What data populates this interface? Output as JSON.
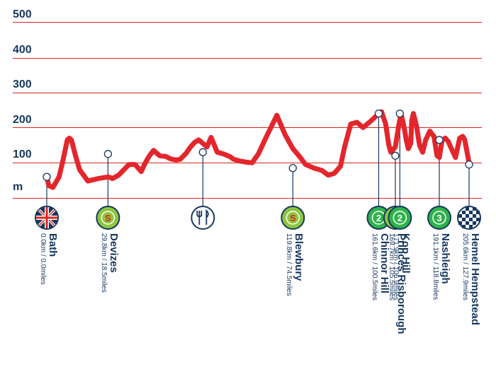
{
  "chart_data": {
    "type": "line",
    "ylabel": "m",
    "ylim": [
      0,
      500
    ],
    "yticks": [
      "100",
      "200",
      "300",
      "400",
      "500"
    ],
    "grid": true,
    "line_color": "#e3262c",
    "profile_km": [
      0,
      1,
      3,
      6,
      8,
      10,
      11,
      12,
      14,
      16,
      20,
      25,
      30,
      32,
      35,
      40,
      43,
      46,
      48,
      50,
      52,
      55,
      58,
      60,
      61,
      63,
      65,
      68,
      70,
      72,
      74,
      76,
      78,
      80,
      83,
      86,
      89,
      91,
      94,
      97,
      100,
      103,
      107,
      112,
      116,
      119.8,
      123,
      126,
      130,
      134,
      137,
      140,
      143,
      145,
      148,
      151,
      154,
      158,
      161.6,
      163,
      165,
      166.5,
      167.5,
      169.7,
      170.5,
      171.5,
      172.5,
      174,
      175,
      176,
      177.2,
      177.7,
      178.5,
      180,
      181.5,
      183,
      184.5,
      186.5,
      188.5,
      190,
      191.1,
      192.5,
      194,
      195.5,
      197,
      199,
      201,
      202.5,
      203.5,
      205.6
    ],
    "profile_m": [
      60,
      35,
      30,
      60,
      110,
      165,
      170,
      165,
      120,
      80,
      48,
      55,
      60,
      55,
      65,
      95,
      95,
      75,
      100,
      120,
      135,
      120,
      118,
      112,
      110,
      108,
      110,
      128,
      145,
      158,
      165,
      155,
      145,
      172,
      130,
      125,
      118,
      110,
      105,
      102,
      100,
      125,
      175,
      235,
      180,
      140,
      118,
      95,
      85,
      78,
      65,
      70,
      90,
      145,
      210,
      215,
      200,
      220,
      240,
      245,
      210,
      150,
      130,
      145,
      175,
      210,
      240,
      200,
      165,
      140,
      155,
      220,
      240,
      205,
      150,
      130,
      165,
      190,
      175,
      120,
      115,
      165,
      170,
      160,
      140,
      115,
      170,
      175,
      165,
      100
    ],
    "waypoints": [
      {
        "name": "Bath",
        "dist": "0.0km / 0.0miles",
        "km": 0,
        "m": 60,
        "icon": "union-flag-icon",
        "badge": ""
      },
      {
        "name": "Devizes",
        "dist": "29.8km / 18.5miles",
        "km": 29.8,
        "m": 125,
        "icon": "sprint-icon",
        "badge": "S"
      },
      {
        "name": "",
        "dist": "",
        "km": 76,
        "m": 130,
        "icon": "feed-zone-icon",
        "badge": ""
      },
      {
        "name": "Blewbury",
        "dist": "119.8km / 74.5miles",
        "km": 119.8,
        "m": 85,
        "icon": "sprint-icon",
        "badge": "S"
      },
      {
        "name": "Chinnor Hill",
        "dist": "161.6km / 100.5miles",
        "km": 161.6,
        "m": 240,
        "icon": "climb-cat2-icon",
        "badge": "2"
      },
      {
        "name": "Princes Risborough",
        "dist": "169.7km / 105.5miles",
        "km": 169.7,
        "m": 120,
        "icon": "sprint-icon",
        "badge": "S"
      },
      {
        "name": "Kop Hill",
        "dist": "171.9km / 106.9miles",
        "km": 171.9,
        "m": 240,
        "icon": "climb-cat2-icon",
        "badge": "2"
      },
      {
        "name": "Nashleigh",
        "dist": "191.1km / 118.8miles",
        "km": 191.1,
        "m": 165,
        "icon": "climb-cat3-icon",
        "badge": "3"
      },
      {
        "name": "Hemel Hempstead",
        "dist": "205.6km / 127.9miles",
        "km": 205.6,
        "m": 95,
        "icon": "finish-flag-icon",
        "badge": ""
      }
    ]
  }
}
